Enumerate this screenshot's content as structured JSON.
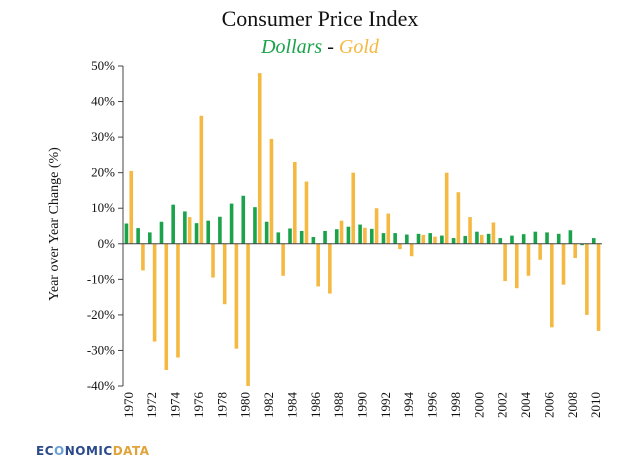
{
  "chart_data": {
    "type": "bar",
    "title": "Consumer Price Index",
    "subtitle": {
      "dollars": "Dollars",
      "separator": "-",
      "gold": "Gold"
    },
    "ylabel": "Year over Year Change (%)",
    "xlabel": "",
    "ylim": [
      -40,
      50
    ],
    "yticks": [
      50,
      40,
      30,
      20,
      10,
      0,
      -10,
      -20,
      -30,
      -40
    ],
    "ytick_labels": [
      "50%",
      "40%",
      "30%",
      "20%",
      "10%",
      "0%",
      "-10%",
      "-20%",
      "-30%",
      "-40%"
    ],
    "xtick_years": [
      "1970",
      "1972",
      "1974",
      "1976",
      "1978",
      "1980",
      "1982",
      "1984",
      "1986",
      "1988",
      "1990",
      "1992",
      "1994",
      "1996",
      "1998",
      "2000",
      "2002",
      "2004",
      "2006",
      "2008",
      "2010"
    ],
    "categories": [
      "1970",
      "1971",
      "1972",
      "1973",
      "1974",
      "1975",
      "1976",
      "1977",
      "1978",
      "1979",
      "1980",
      "1981",
      "1982",
      "1983",
      "1984",
      "1985",
      "1986",
      "1987",
      "1988",
      "1989",
      "1990",
      "1991",
      "1992",
      "1993",
      "1994",
      "1995",
      "1996",
      "1997",
      "1998",
      "1999",
      "2000",
      "2001",
      "2002",
      "2003",
      "2004",
      "2005",
      "2006",
      "2007",
      "2008",
      "2009",
      "2010"
    ],
    "series": [
      {
        "name": "Dollars",
        "color": "#1aa34a",
        "values": [
          5.7,
          4.4,
          3.2,
          6.2,
          11.0,
          9.1,
          5.8,
          6.5,
          7.6,
          11.3,
          13.5,
          10.3,
          6.2,
          3.2,
          4.3,
          3.6,
          1.9,
          3.6,
          4.1,
          4.8,
          5.4,
          4.2,
          3.0,
          3.0,
          2.6,
          2.8,
          3.0,
          2.3,
          1.6,
          2.2,
          3.4,
          2.8,
          1.6,
          2.3,
          2.7,
          3.4,
          3.2,
          2.8,
          3.8,
          -0.4,
          1.6
        ]
      },
      {
        "name": "Gold",
        "color": "#f5b942",
        "values": [
          20.5,
          -7.5,
          -27.5,
          -35.5,
          -32.0,
          7.5,
          36.0,
          -9.5,
          -17.0,
          -29.5,
          -40.0,
          48.0,
          29.5,
          -9.0,
          23.0,
          17.5,
          -12.0,
          -14.0,
          6.5,
          20.0,
          4.5,
          10.0,
          8.5,
          -1.5,
          -3.5,
          2.5,
          2.0,
          20.0,
          14.5,
          7.5,
          2.5,
          6.0,
          -10.5,
          -12.5,
          -9.0,
          -4.5,
          -23.5,
          -11.5,
          -4.0,
          -20.0,
          -24.5
        ]
      }
    ]
  },
  "logo": {
    "e": "EC",
    "o": "O",
    "nomic": "NOMIC",
    "data": "DATA"
  }
}
